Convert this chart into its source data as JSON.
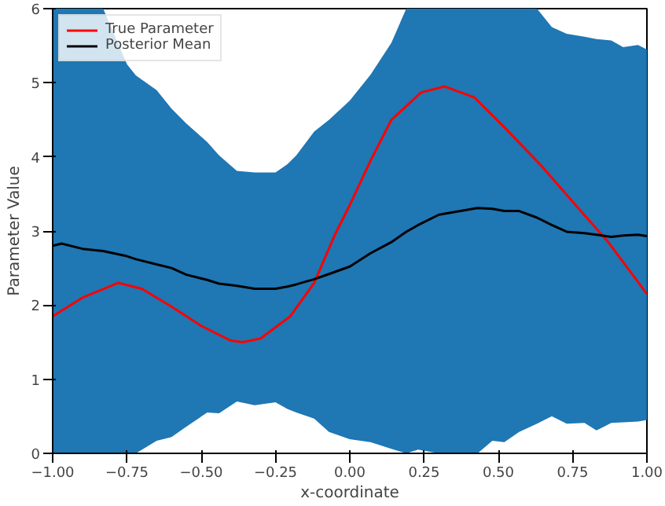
{
  "chart_data": {
    "type": "line",
    "xlabel": "x-coordinate",
    "ylabel": "Parameter Value",
    "xlim": [
      -1,
      1
    ],
    "ylim": [
      0,
      6
    ],
    "xticks": [
      {
        "value": -1,
        "label": "−1.00"
      },
      {
        "value": -0.75,
        "label": "−0.75"
      },
      {
        "value": -0.5,
        "label": "−0.50"
      },
      {
        "value": -0.25,
        "label": "−0.25"
      },
      {
        "value": 0,
        "label": "0.00"
      },
      {
        "value": 0.25,
        "label": "0.25"
      },
      {
        "value": 0.5,
        "label": "0.50"
      },
      {
        "value": 0.75,
        "label": "0.75"
      },
      {
        "value": 1,
        "label": "1.00"
      }
    ],
    "yticks": [
      0,
      1,
      2,
      3,
      4,
      5,
      6
    ],
    "legend": "top left",
    "grid": false,
    "marker": "none",
    "line_style": "solid",
    "series": [
      {
        "name": "True Parameter",
        "color": "#ff0000",
        "x": [
          -1,
          -0.9,
          -0.78,
          -0.7,
          -0.6,
          -0.5,
          -0.4,
          -0.36,
          -0.3,
          -0.2,
          -0.12,
          -0.05,
          0,
          0.07,
          0.14,
          0.24,
          0.32,
          0.42,
          0.52,
          0.64,
          0.76,
          0.87,
          1.0
        ],
        "values": [
          1.85,
          2.1,
          2.3,
          2.22,
          1.98,
          1.72,
          1.52,
          1.5,
          1.55,
          1.85,
          2.3,
          2.95,
          3.35,
          3.95,
          4.5,
          4.87,
          4.95,
          4.8,
          4.4,
          3.9,
          3.35,
          2.85,
          2.15
        ]
      },
      {
        "name": "Posterior Mean",
        "color": "#000000",
        "colors": [
          "#1f77b4",
          "#1f77b4",
          "#1f77b4",
          "#1f77b4",
          "#1f77b4",
          "#1f77b4",
          "#1f77b4",
          "#1f77b4",
          "#1f77b4",
          "#1f77b4",
          "#1f77b4",
          "#1f77b4",
          "#1f77b4",
          "#1f77b4",
          "#1f77b4",
          "#1f77b4",
          "#1f77b4",
          "#1f77b4",
          "#1f77b4",
          "#1f77b4",
          "#1f77b4",
          "#1f77b4",
          "#1f77b4",
          "#1f77b4",
          "#1f77b4",
          "#1f77b4",
          "#1f77b4",
          "#1f77b4",
          "#1f77b4",
          "#1f77b4",
          "#1f77b4",
          "#1f77b4",
          "#1f77b4",
          "#1f77b4",
          "#1f77b4",
          "#1f77b4",
          "#1f77b4"
        ],
        "x": [
          -1,
          -0.97,
          -0.9,
          -0.83,
          -0.75,
          -0.72,
          -0.65,
          -0.6,
          -0.55,
          -0.48,
          -0.44,
          -0.38,
          -0.32,
          -0.25,
          -0.21,
          -0.18,
          -0.12,
          -0.07,
          0,
          0.07,
          0.14,
          0.19,
          0.23,
          0.3,
          0.43,
          0.48,
          0.52,
          0.57,
          0.63,
          0.68,
          0.73,
          0.79,
          0.83,
          0.88,
          0.92,
          0.97,
          1.0
        ],
        "values": [
          2.8,
          2.83,
          2.76,
          2.73,
          2.66,
          2.62,
          2.55,
          2.5,
          2.41,
          2.34,
          2.29,
          2.26,
          2.22,
          2.22,
          2.25,
          2.28,
          2.35,
          2.42,
          2.52,
          2.7,
          2.85,
          2.99,
          3.08,
          3.22,
          3.31,
          3.3,
          3.27,
          3.27,
          3.18,
          3.08,
          2.99,
          2.97,
          2.95,
          2.92,
          2.94,
          2.95,
          2.93
        ],
        "upper": [
          6,
          6,
          6,
          6,
          5.25,
          5.1,
          4.9,
          4.65,
          4.45,
          4.2,
          4.02,
          3.81,
          3.79,
          3.79,
          3.9,
          4.02,
          4.34,
          4.5,
          4.76,
          5.11,
          5.54,
          6,
          6,
          6,
          6,
          6,
          6,
          6,
          6,
          5.75,
          5.66,
          5.62,
          5.59,
          5.57,
          5.48,
          5.51,
          5.45
        ],
        "lower": [
          0,
          0,
          0,
          0,
          0,
          0,
          0.17,
          0.22,
          0.36,
          0.55,
          0.54,
          0.7,
          0.65,
          0.69,
          0.6,
          0.55,
          0.47,
          0.29,
          0.19,
          0.15,
          0.06,
          0,
          0.05,
          0,
          0,
          0.17,
          0.15,
          0.29,
          0.4,
          0.5,
          0.4,
          0.41,
          0.31,
          0.41,
          0.42,
          0.43,
          0.45
        ]
      }
    ]
  }
}
